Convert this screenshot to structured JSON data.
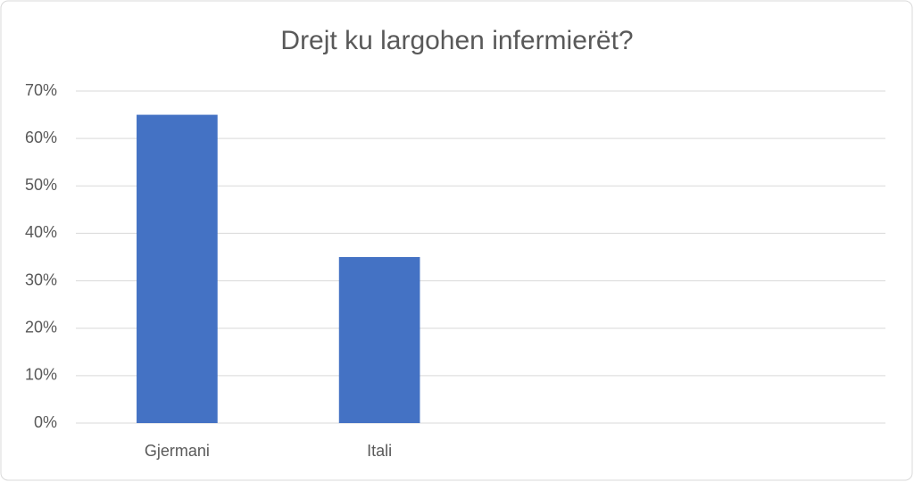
{
  "chart_data": {
    "type": "bar",
    "title": "Drejt ku largohen infermierët?",
    "categories": [
      "Gjermani",
      "Itali",
      null,
      null
    ],
    "values": [
      65,
      35,
      null,
      null
    ],
    "color": "#4472c4",
    "ylim": [
      0,
      70
    ],
    "yticks": [
      {
        "value": 0,
        "label": "0%"
      },
      {
        "value": 10,
        "label": "10%"
      },
      {
        "value": 20,
        "label": "20%"
      },
      {
        "value": 30,
        "label": "30%"
      },
      {
        "value": 40,
        "label": "40%"
      },
      {
        "value": 50,
        "label": "50%"
      },
      {
        "value": 60,
        "label": "60%"
      },
      {
        "value": 70,
        "label": "70%"
      }
    ],
    "grid": true
  }
}
